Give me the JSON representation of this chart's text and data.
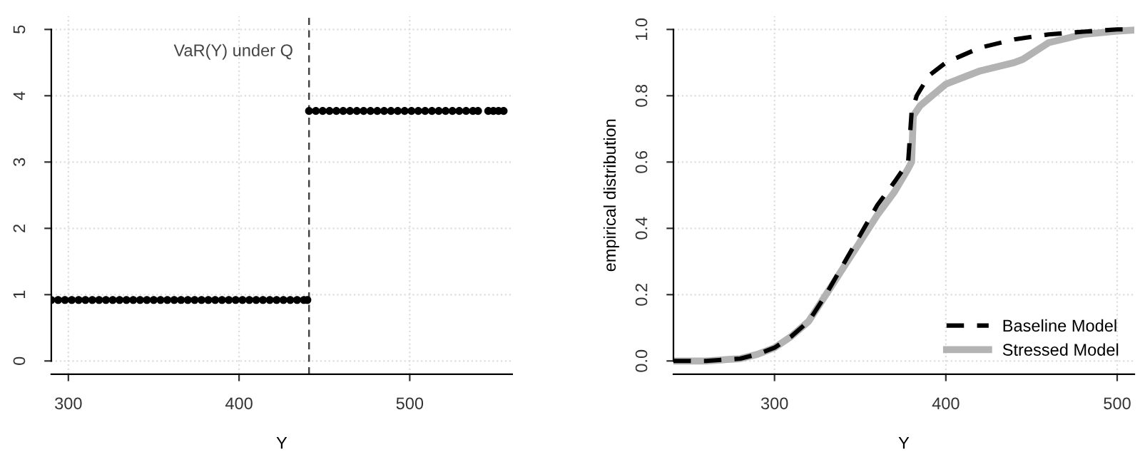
{
  "chart_data": [
    {
      "type": "scatter",
      "xlabel": "Y",
      "xlim": [
        290,
        560
      ],
      "ylim": [
        -0.2,
        5.2
      ],
      "xticks": [
        300,
        400,
        500
      ],
      "yticks": [
        0,
        1,
        2,
        3,
        4,
        5
      ],
      "grid": true,
      "marker": "circle",
      "series": [
        {
          "color": "#000000",
          "x": [
            290,
            294,
            298,
            302,
            306,
            310,
            314,
            318,
            322,
            326,
            330,
            334,
            338,
            342,
            346,
            350,
            354,
            358,
            362,
            366,
            370,
            374,
            378,
            382,
            386,
            390,
            394,
            398,
            402,
            406,
            410,
            414,
            418,
            422,
            426,
            430,
            434,
            438,
            440
          ],
          "values": [
            0.92,
            0.92,
            0.92,
            0.92,
            0.92,
            0.92,
            0.92,
            0.92,
            0.92,
            0.92,
            0.92,
            0.92,
            0.92,
            0.92,
            0.92,
            0.92,
            0.92,
            0.92,
            0.92,
            0.92,
            0.92,
            0.92,
            0.92,
            0.92,
            0.92,
            0.92,
            0.92,
            0.92,
            0.92,
            0.92,
            0.92,
            0.92,
            0.92,
            0.92,
            0.92,
            0.92,
            0.92,
            0.92,
            0.92
          ]
        },
        {
          "color": "#000000",
          "x": [
            441,
            445,
            449,
            453,
            457,
            461,
            465,
            469,
            473,
            477,
            481,
            485,
            489,
            493,
            497,
            501,
            505,
            509,
            513,
            517,
            521,
            525,
            529,
            533,
            537,
            540,
            546,
            549,
            552,
            555
          ],
          "values": [
            3.77,
            3.77,
            3.77,
            3.77,
            3.77,
            3.77,
            3.77,
            3.77,
            3.77,
            3.77,
            3.77,
            3.77,
            3.77,
            3.77,
            3.77,
            3.77,
            3.77,
            3.77,
            3.77,
            3.77,
            3.77,
            3.77,
            3.77,
            3.77,
            3.77,
            3.77,
            3.77,
            3.77,
            3.77,
            3.77
          ]
        }
      ],
      "ref_lines": [
        {
          "axis": "x",
          "value": 441,
          "label": "VaR(Y) under Q",
          "color": "#444444",
          "line_style": "dashed"
        }
      ]
    },
    {
      "type": "line",
      "xlabel": "Y",
      "ylabel": "empirical distribution",
      "xlim": [
        241,
        510
      ],
      "ylim": [
        -0.04,
        1.04
      ],
      "xticks": [
        300,
        400,
        500
      ],
      "yticks": [
        {
          "value": 0,
          "label": "0.0"
        },
        0.2,
        0.4,
        0.6,
        0.8,
        {
          "value": 1,
          "label": "1.0"
        }
      ],
      "grid": true,
      "legend": "bottom right",
      "series": [
        {
          "name": "Baseline Model",
          "color": "#000000",
          "line_style": "dashed",
          "x": [
            241,
            260,
            280,
            290,
            300,
            310,
            320,
            330,
            340,
            350,
            360,
            370,
            378,
            380,
            383,
            390,
            400,
            420,
            440,
            460,
            480,
            500,
            510
          ],
          "values": [
            0,
            0,
            0.007,
            0.02,
            0.04,
            0.075,
            0.12,
            0.2,
            0.29,
            0.38,
            0.47,
            0.54,
            0.6,
            0.75,
            0.8,
            0.86,
            0.9,
            0.945,
            0.97,
            0.985,
            0.993,
            1,
            1
          ]
        },
        {
          "name": "Stressed Model",
          "color": "#b3b3b3",
          "line_style": "solid",
          "x": [
            241,
            260,
            280,
            290,
            300,
            310,
            320,
            330,
            340,
            350,
            360,
            370,
            378,
            380,
            381,
            385,
            400,
            420,
            440,
            445,
            460,
            480,
            500,
            510
          ],
          "values": [
            0,
            0,
            0.007,
            0.02,
            0.04,
            0.075,
            0.12,
            0.2,
            0.28,
            0.36,
            0.44,
            0.51,
            0.58,
            0.6,
            0.74,
            0.77,
            0.835,
            0.875,
            0.9,
            0.91,
            0.96,
            0.985,
            0.995,
            0.998
          ]
        }
      ]
    }
  ]
}
